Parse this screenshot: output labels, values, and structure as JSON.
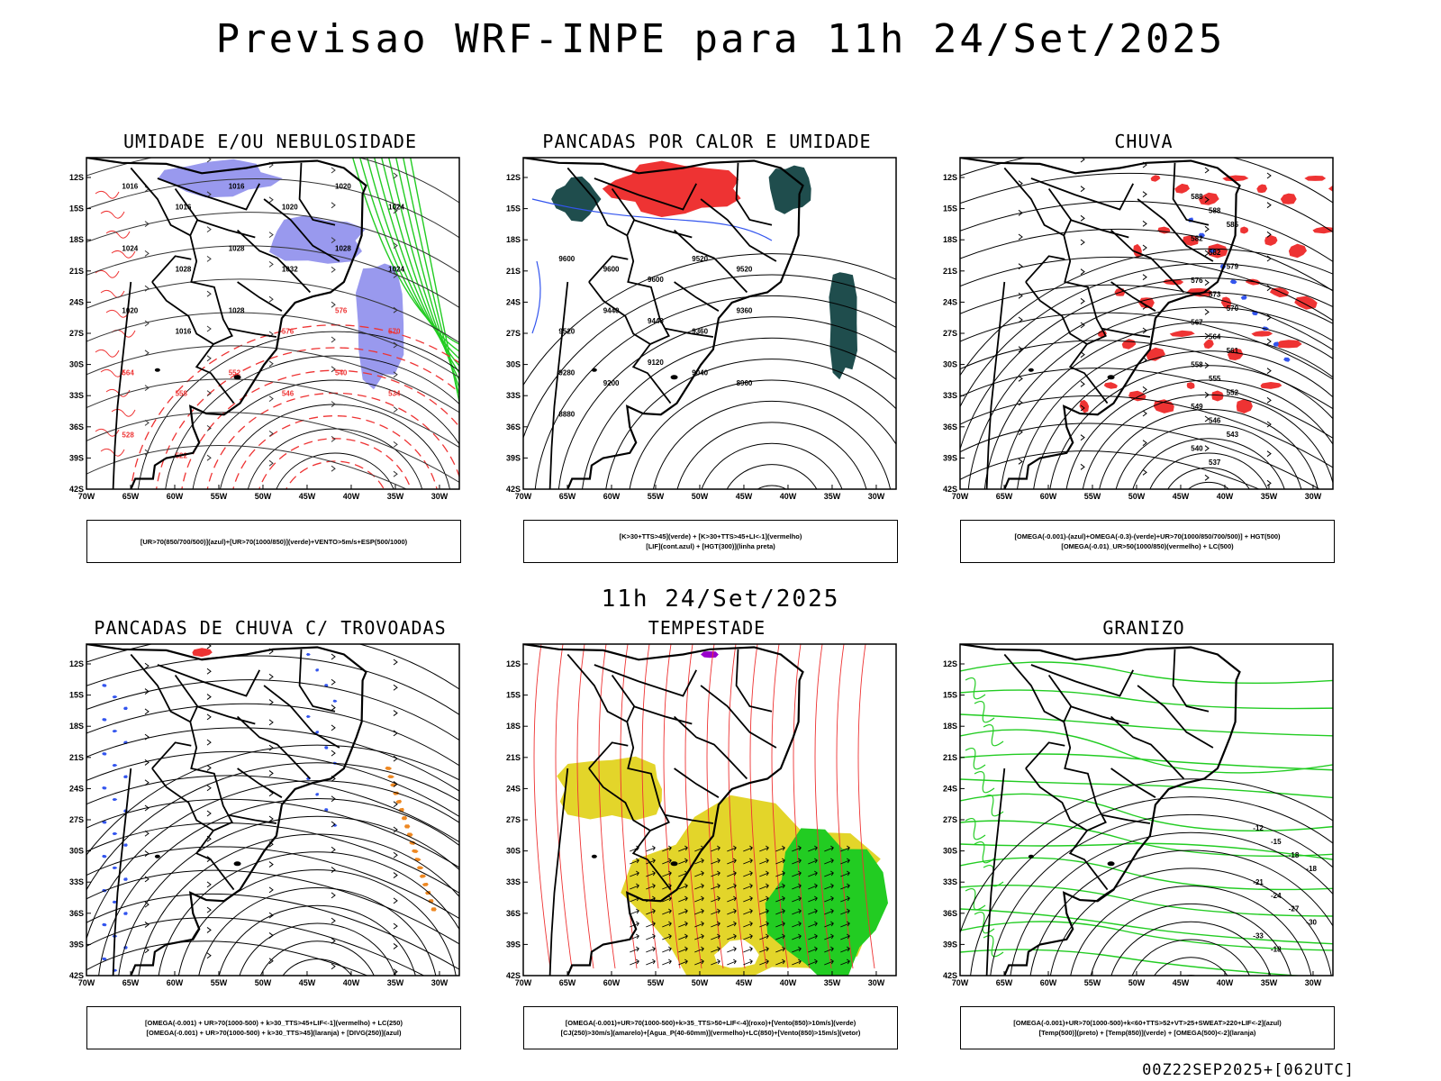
{
  "title": "Previsao WRF-INPE  para 11h 24/Set/2025",
  "mid_title": "11h 24/Set/2025",
  "footer": "00Z22SEP2025+[062UTC]",
  "lat_labels": [
    "12S",
    "15S",
    "18S",
    "21S",
    "24S",
    "27S",
    "30S",
    "33S",
    "36S",
    "39S",
    "42S"
  ],
  "lon_labels": [
    "70W",
    "65W",
    "60W",
    "55W",
    "50W",
    "45W",
    "40W",
    "35W",
    "30W"
  ],
  "panels": [
    {
      "title": "UMIDADE E/OU NEBULOSIDADE",
      "legend": [
        "[UR>70(850/700/500)](azul)+[UR>70(1000/850)](verde)+VENTO>5m/s+ESP(500/1000)"
      ],
      "contour_labels": [
        "1016",
        "1016",
        "1016",
        "1020",
        "1020",
        "1024",
        "1024",
        "1028",
        "1028",
        "1032",
        "1028",
        "1024",
        "1020",
        "1016",
        "1028",
        "576",
        "576",
        "570",
        "564",
        "558",
        "552",
        "546",
        "540",
        "534",
        "528",
        "522"
      ]
    },
    {
      "title": "PANCADAS POR CALOR E UMIDADE",
      "legend": [
        "[K>30+TTS>45](verde) + [K>30+TTS>45+LI<-1](vermelho)",
        "[LIF](cont.azul) + [HGT(300)](linha preta)"
      ],
      "contour_labels": [
        "9600",
        "9600",
        "9600",
        "9520",
        "9520",
        "9520",
        "9440",
        "9440",
        "9360",
        "9360",
        "9280",
        "9200",
        "9120",
        "9040",
        "8960",
        "8880"
      ]
    },
    {
      "title": "CHUVA",
      "legend": [
        "[OMEGA(-0.001)-(azul)+OMEGA(-0.3)-(verde)+UR>70(1000/850/700/500)] + HGT(500)",
        "[OMEGA(-0.01)_UR>50(1000/850)(vermelho) + LC(500)"
      ],
      "contour_labels": [
        "588",
        "588",
        "585",
        "582",
        "582",
        "579",
        "576",
        "573",
        "570",
        "567",
        "564",
        "561",
        "558",
        "555",
        "552",
        "549",
        "546",
        "543",
        "540",
        "537"
      ]
    },
    {
      "title": "PANCADAS DE CHUVA C/ TROVOADAS",
      "legend": [
        "[OMEGA(-0.001) + UR>70(1000-500) + k>30_TTS>45+LIF<-1](vermelho) + LC(250)",
        "[OMEGA(-0.001) + UR>70(1000-500) + k>30_TTS>45](laranja) + [DIVG(250)](azul)"
      ],
      "contour_labels": []
    },
    {
      "title": "TEMPESTADE",
      "legend": [
        "[OMEGA(-0.001)+UR>70(1000-500)+k>35_TTS>50+LIF<-4](roxo)+[Vento(850)>10m/s](verde)",
        "[CJ(250)>30m/s](amarelo)+[Agua_P(40-60mm)](vermelho)+LC(850)+[Vento(850)>15m/s](vetor)"
      ],
      "contour_labels": []
    },
    {
      "title": "GRANIZO",
      "legend": [
        "[OMEGA(-0.001)+UR>70(1000-500)+k<60+TTS>52+VT>25+SWEAT>220+LIF<-2](azul)",
        "[Temp(500)](preto) + [Temp(850)](verde) + [OMEGA(500)<-2](laranja)"
      ],
      "contour_labels": [
        "-12",
        "-15",
        "-18",
        "-18",
        "-21",
        "-24",
        "-27",
        "-30",
        "-33",
        "-18"
      ]
    }
  ],
  "colors": {
    "blue": "#3355ee",
    "light_blue": "#9999ee",
    "green": "#22cc22",
    "red": "#ee3333",
    "orange": "#ee8822",
    "yellow": "#e3d52a",
    "dark_teal": "#1f4d4d",
    "purple": "#9900cc"
  }
}
